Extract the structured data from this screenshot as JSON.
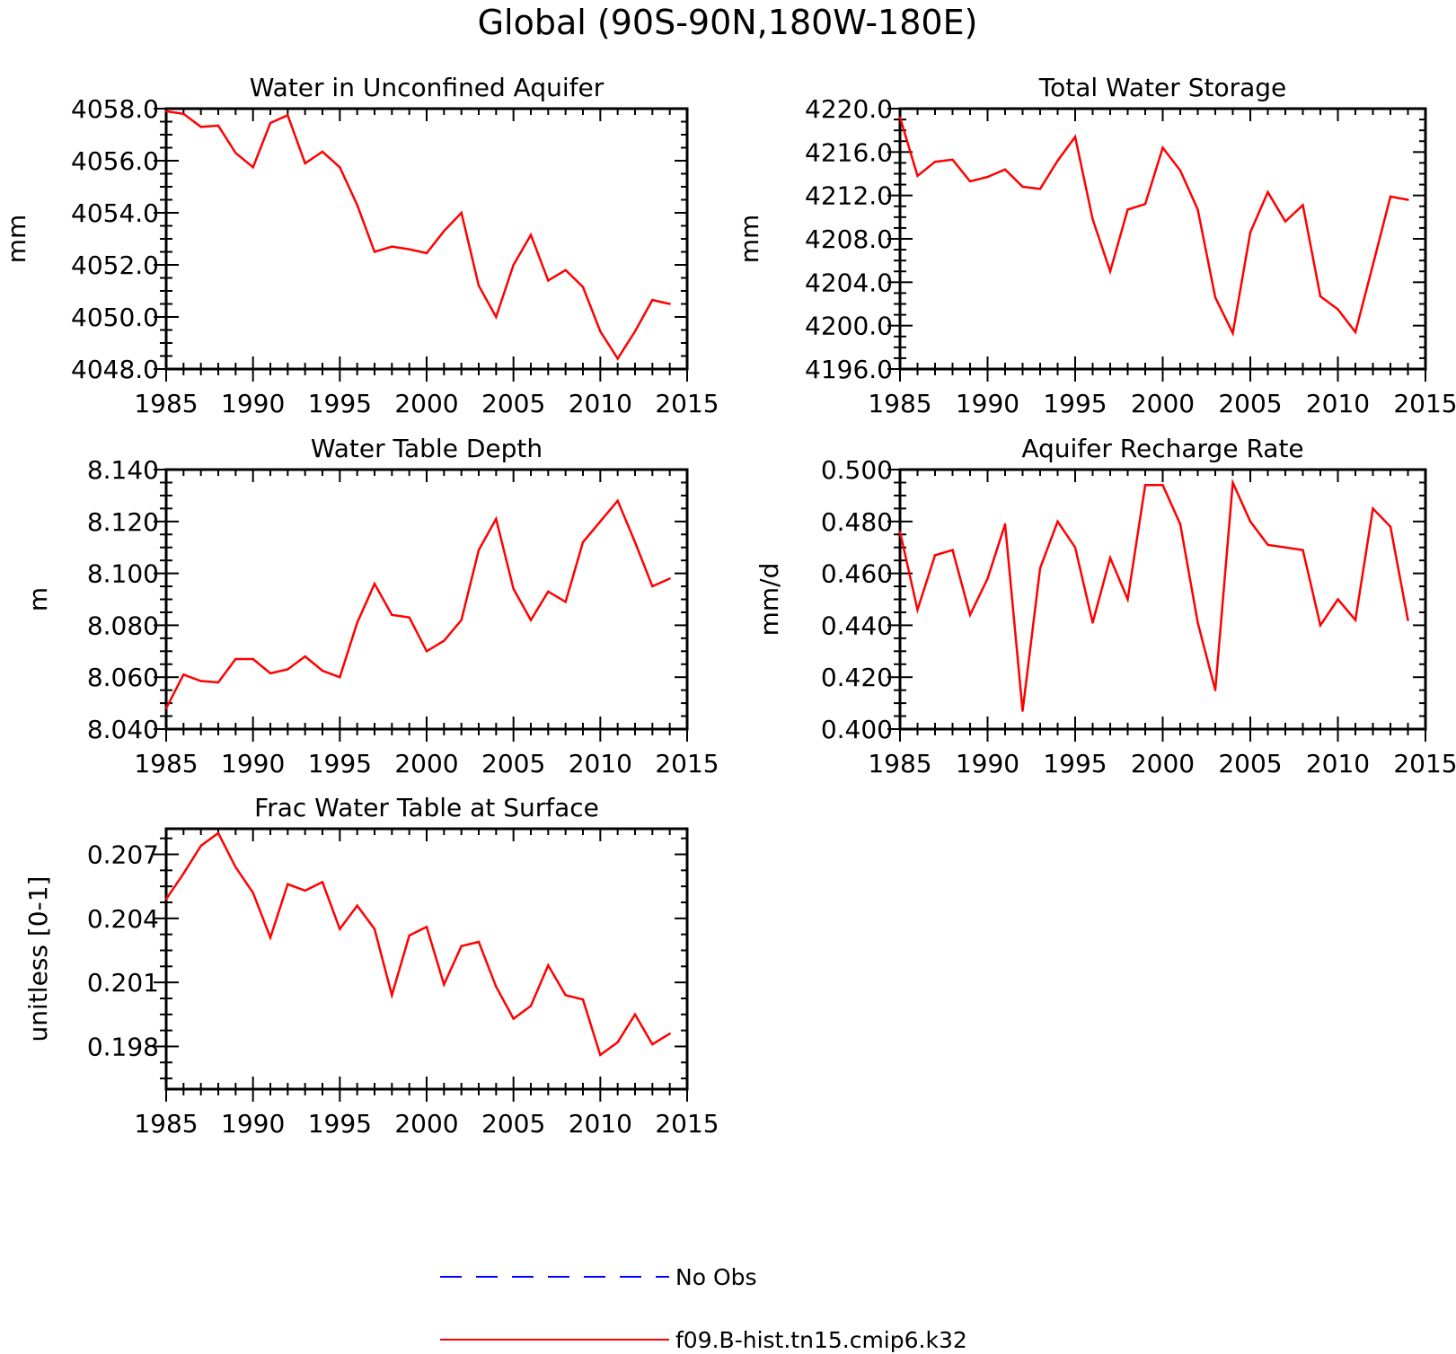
{
  "title": "Global (90S-90N,180W-180E)",
  "colors": {
    "model": "#ff0000",
    "obs": "#0000ff",
    "axis": "#000000"
  },
  "legend": [
    {
      "label": "No Obs",
      "color": "#0000ff",
      "style": "dashed"
    },
    {
      "label": "f09.B-hist.tn15.cmip6.k32",
      "color": "#ff0000",
      "style": "solid"
    }
  ],
  "chart_data": [
    {
      "type": "line",
      "title": "Water in Unconfined Aquifer",
      "ylabel": "mm",
      "xlim": [
        1985,
        2015
      ],
      "ylim": [
        4048.0,
        4058.0
      ],
      "xticks": [
        "1985",
        "1990",
        "1995",
        "2000",
        "2005",
        "2010",
        "2015"
      ],
      "yticks": [
        "4048.0",
        "4050.0",
        "4052.0",
        "4054.0",
        "4056.0",
        "4058.0"
      ],
      "series": [
        {
          "name": "f09.B-hist.tn15.cmip6.k32",
          "x": [
            1985,
            1986,
            1987,
            1988,
            1989,
            1990,
            1991,
            1992,
            1993,
            1994,
            1995,
            1996,
            1997,
            1998,
            1999,
            2000,
            2001,
            2002,
            2003,
            2004,
            2005,
            2006,
            2007,
            2008,
            2009,
            2010,
            2011,
            2012,
            2013,
            2014
          ],
          "values": [
            4057.9,
            4057.8,
            4057.3,
            4057.35,
            4056.3,
            4055.75,
            4057.45,
            4057.75,
            4055.9,
            4056.35,
            4055.75,
            4054.3,
            4052.5,
            4052.7,
            4052.6,
            4052.45,
            4053.3,
            4054.0,
            4051.2,
            4050.0,
            4052.0,
            4053.15,
            4051.4,
            4051.8,
            4051.15,
            4049.45,
            4048.4,
            4049.45,
            4050.65,
            4050.5
          ]
        }
      ]
    },
    {
      "type": "line",
      "title": "Total Water Storage",
      "ylabel": "mm",
      "xlim": [
        1985,
        2015
      ],
      "ylim": [
        4196.0,
        4220.0
      ],
      "xticks": [
        "1985",
        "1990",
        "1995",
        "2000",
        "2005",
        "2010",
        "2015"
      ],
      "yticks": [
        "4196.0",
        "4200.0",
        "4204.0",
        "4208.0",
        "4212.0",
        "4216.0",
        "4220.0"
      ],
      "series": [
        {
          "name": "f09.B-hist.tn15.cmip6.k32",
          "x": [
            1985,
            1986,
            1987,
            1988,
            1989,
            1990,
            1991,
            1992,
            1993,
            1994,
            1995,
            1996,
            1997,
            1998,
            1999,
            2000,
            2001,
            2002,
            2003,
            2004,
            2005,
            2006,
            2007,
            2008,
            2009,
            2010,
            2011,
            2012,
            2013,
            2014
          ],
          "values": [
            4219.2,
            4213.8,
            4215.1,
            4215.3,
            4213.3,
            4213.7,
            4214.4,
            4212.8,
            4212.6,
            4215.2,
            4217.4,
            4209.8,
            4205.0,
            4210.7,
            4211.2,
            4216.4,
            4214.3,
            4210.7,
            4202.6,
            4199.3,
            4208.6,
            4212.3,
            4209.6,
            4211.1,
            4202.7,
            4201.5,
            4199.4,
            4205.6,
            4211.9,
            4211.6
          ]
        }
      ]
    },
    {
      "type": "line",
      "title": "Water Table Depth",
      "ylabel": "m",
      "xlim": [
        1985,
        2015
      ],
      "ylim": [
        8.04,
        8.14
      ],
      "xticks": [
        "1985",
        "1990",
        "1995",
        "2000",
        "2005",
        "2010",
        "2015"
      ],
      "yticks": [
        "8.040",
        "8.060",
        "8.080",
        "8.100",
        "8.120",
        "8.140"
      ],
      "series": [
        {
          "name": "f09.B-hist.tn15.cmip6.k32",
          "x": [
            1985,
            1986,
            1987,
            1988,
            1989,
            1990,
            1991,
            1992,
            1993,
            1994,
            1995,
            1996,
            1997,
            1998,
            1999,
            2000,
            2001,
            2002,
            2003,
            2004,
            2005,
            2006,
            2007,
            2008,
            2009,
            2010,
            2011,
            2012,
            2013,
            2014
          ],
          "values": [
            8.048,
            8.061,
            8.0585,
            8.058,
            8.067,
            8.067,
            8.0615,
            8.063,
            8.068,
            8.0625,
            8.06,
            8.081,
            8.096,
            8.084,
            8.083,
            8.07,
            8.074,
            8.082,
            8.109,
            8.121,
            8.094,
            8.082,
            8.093,
            8.089,
            8.112,
            8.12,
            8.128,
            8.112,
            8.095,
            8.098
          ]
        }
      ]
    },
    {
      "type": "line",
      "title": "Aquifer Recharge Rate",
      "ylabel": "mm/d",
      "xlim": [
        1985,
        2015
      ],
      "ylim": [
        0.4,
        0.5
      ],
      "xticks": [
        "1985",
        "1990",
        "1995",
        "2000",
        "2005",
        "2010",
        "2015"
      ],
      "yticks": [
        "0.400",
        "0.420",
        "0.440",
        "0.460",
        "0.480",
        "0.500"
      ],
      "series": [
        {
          "name": "f09.B-hist.tn15.cmip6.k32",
          "x": [
            1985,
            1986,
            1987,
            1988,
            1989,
            1990,
            1991,
            1992,
            1993,
            1994,
            1995,
            1996,
            1997,
            1998,
            1999,
            2000,
            2001,
            2002,
            2003,
            2004,
            2005,
            2006,
            2007,
            2008,
            2009,
            2010,
            2011,
            2012,
            2013,
            2014
          ],
          "values": [
            0.476,
            0.446,
            0.467,
            0.469,
            0.444,
            0.458,
            0.479,
            0.407,
            0.462,
            0.48,
            0.47,
            0.441,
            0.466,
            0.45,
            0.494,
            0.494,
            0.479,
            0.441,
            0.415,
            0.495,
            0.48,
            0.471,
            0.47,
            0.469,
            0.44,
            0.45,
            0.442,
            0.485,
            0.478,
            0.442
          ]
        }
      ]
    },
    {
      "type": "line",
      "title": "Frac Water Table at Surface",
      "ylabel": "unitless [0-1]",
      "xlim": [
        1985,
        2015
      ],
      "ylim": [
        0.196,
        0.2082
      ],
      "xticks": [
        "1985",
        "1990",
        "1995",
        "2000",
        "2005",
        "2010",
        "2015"
      ],
      "yticks": [
        "0.198",
        "0.201",
        "0.204",
        "0.207"
      ],
      "series": [
        {
          "name": "f09.B-hist.tn15.cmip6.k32",
          "x": [
            1985,
            1986,
            1987,
            1988,
            1989,
            1990,
            1991,
            1992,
            1993,
            1994,
            1995,
            1996,
            1997,
            1998,
            1999,
            2000,
            2001,
            2002,
            2003,
            2004,
            2005,
            2006,
            2007,
            2008,
            2009,
            2010,
            2011,
            2012,
            2013,
            2014
          ],
          "values": [
            0.2049,
            0.2061,
            0.2074,
            0.208,
            0.2064,
            0.2052,
            0.2031,
            0.2056,
            0.2053,
            0.2057,
            0.2035,
            0.2046,
            0.2035,
            0.2004,
            0.2032,
            0.2036,
            0.2009,
            0.2027,
            0.2029,
            0.2008,
            0.1993,
            0.1999,
            0.2018,
            0.2004,
            0.2002,
            0.1976,
            0.1982,
            0.1995,
            0.1981,
            0.1986
          ]
        }
      ]
    }
  ]
}
